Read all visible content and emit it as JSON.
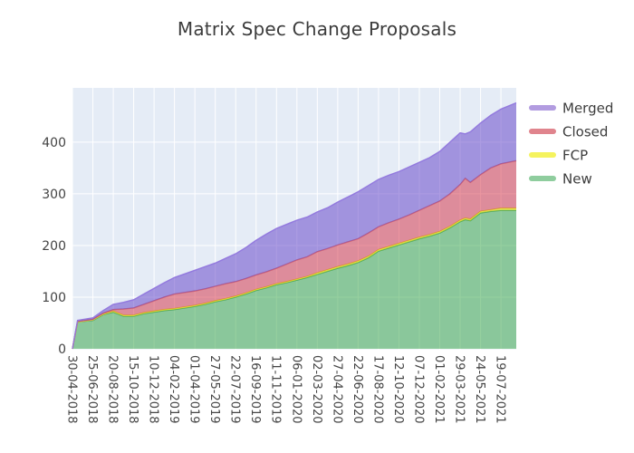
{
  "title": "Matrix Spec Change Proposals",
  "legend": {
    "items": [
      {
        "id": "merged",
        "label": "Merged",
        "swatch_color": "#b29ce0"
      },
      {
        "id": "closed",
        "label": "Closed",
        "swatch_color": "#e0848d"
      },
      {
        "id": "fcp",
        "label": "FCP",
        "swatch_color": "#f5f35e"
      },
      {
        "id": "new",
        "label": "New",
        "swatch_color": "#8fcd9e"
      }
    ]
  },
  "axes": {
    "x": {
      "tick_labels": [
        "30-04-2018",
        "25-06-2018",
        "20-08-2018",
        "15-10-2018",
        "10-12-2018",
        "04-02-2019",
        "01-04-2019",
        "27-05-2019",
        "22-07-2019",
        "16-09-2019",
        "11-11-2019",
        "06-01-2020",
        "02-03-2020",
        "27-04-2020",
        "22-06-2020",
        "17-08-2020",
        "12-10-2020",
        "07-12-2020",
        "01-02-2021",
        "29-03-2021",
        "24-05-2021",
        "19-07-2021"
      ]
    },
    "y": {
      "tick_labels": [
        0,
        100,
        200,
        300,
        400
      ]
    }
  },
  "colors": {
    "plot_background": "#e5ecf6",
    "gridline": "#ffffff",
    "tick_text": "#444444",
    "title_text": "#3c3c3c"
  },
  "chart_data": {
    "type": "area",
    "stacked": true,
    "title": "Matrix Spec Change Proposals",
    "xlabel": "",
    "ylabel": "",
    "x_start_date": "30-04-2018",
    "x_tick_interval_days": 56,
    "x_tick_dates": [
      "30-04-2018",
      "25-06-2018",
      "20-08-2018",
      "15-10-2018",
      "10-12-2018",
      "04-02-2019",
      "01-04-2019",
      "27-05-2019",
      "22-07-2019",
      "16-09-2019",
      "11-11-2019",
      "06-01-2020",
      "02-03-2020",
      "27-04-2020",
      "22-06-2020",
      "17-08-2020",
      "12-10-2020",
      "07-12-2020",
      "01-02-2021",
      "29-03-2021",
      "24-05-2021",
      "19-07-2021"
    ],
    "x_day_offsets": [
      0,
      14,
      56,
      84,
      112,
      140,
      168,
      196,
      224,
      252,
      280,
      308,
      336,
      364,
      392,
      420,
      448,
      476,
      504,
      532,
      560,
      588,
      616,
      644,
      672,
      700,
      728,
      756,
      784,
      812,
      840,
      868,
      896,
      924,
      952,
      980,
      1008,
      1036,
      1064,
      1078,
      1092,
      1120,
      1148,
      1176,
      1218
    ],
    "x_total_days": 1218,
    "ylim": [
      0,
      505
    ],
    "grid": true,
    "legend_position": "right",
    "series": [
      {
        "name": "New",
        "line_color": "#4aa55e",
        "fill_color": "#2fa13f",
        "fill_opacity": 0.5,
        "values": [
          0,
          52,
          55,
          66,
          71,
          63,
          63,
          68,
          71,
          74,
          76,
          79,
          82,
          86,
          91,
          95,
          100,
          106,
          113,
          118,
          124,
          128,
          133,
          138,
          144,
          150,
          156,
          161,
          167,
          176,
          189,
          195,
          201,
          207,
          213,
          218,
          224,
          234,
          246,
          250,
          248,
          263,
          266,
          268,
          268
        ]
      },
      {
        "name": "FCP",
        "line_color": "#e0dd30",
        "fill_color": "#e8e514",
        "fill_opacity": 0.6,
        "values": [
          0,
          0,
          1,
          1,
          2,
          2,
          2,
          2,
          2,
          2,
          2,
          2,
          2,
          2,
          2,
          2,
          2,
          2,
          2,
          2,
          2,
          2,
          2,
          2,
          3,
          3,
          3,
          3,
          3,
          3,
          3,
          3,
          3,
          3,
          3,
          3,
          3,
          3,
          3,
          3,
          3,
          3,
          3,
          4,
          4
        ]
      },
      {
        "name": "Closed",
        "line_color": "#cc5f70",
        "fill_color": "#d62b3f",
        "fill_opacity": 0.5,
        "values": [
          0,
          1,
          1,
          2,
          3,
          12,
          14,
          16,
          20,
          24,
          28,
          28,
          28,
          28,
          28,
          29,
          28,
          28,
          28,
          29,
          30,
          34,
          37,
          38,
          41,
          41,
          42,
          43,
          43,
          45,
          44,
          46,
          47,
          49,
          52,
          56,
          59,
          63,
          69,
          77,
          71,
          71,
          81,
          86,
          92
        ]
      },
      {
        "name": "Merged",
        "line_color": "#9076dd",
        "fill_color": "#6a4bcb",
        "fill_opacity": 0.55,
        "values": [
          0,
          2,
          3,
          5,
          10,
          13,
          16,
          20,
          24,
          28,
          32,
          36,
          40,
          43,
          45,
          49,
          54,
          60,
          67,
          73,
          77,
          77,
          77,
          77,
          77,
          79,
          83,
          87,
          91,
          92,
          92,
          92,
          92,
          93,
          93,
          93,
          96,
          100,
          100,
          86,
          98,
          100,
          102,
          106,
          112
        ]
      }
    ]
  }
}
